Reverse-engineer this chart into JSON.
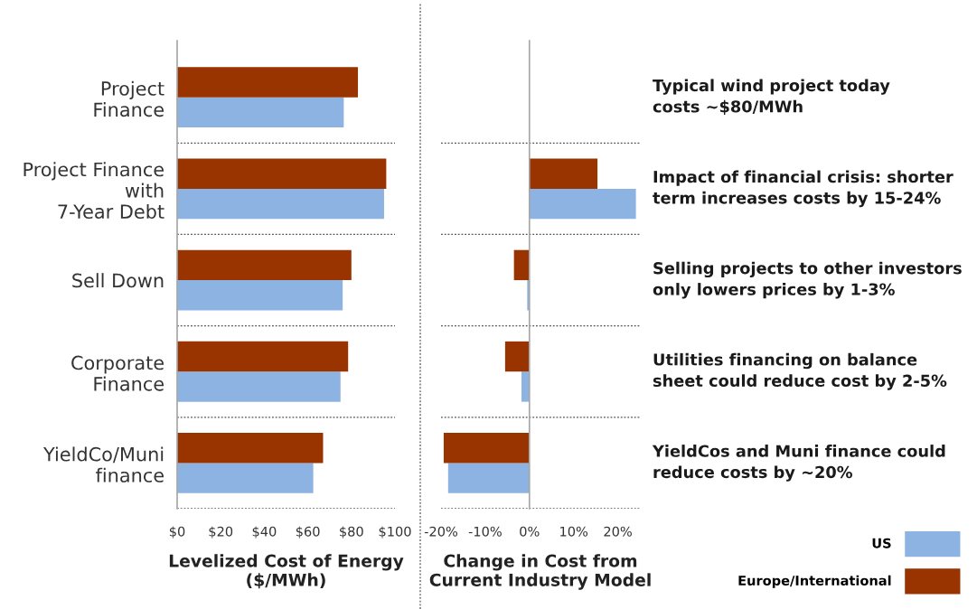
{
  "chart_data": [
    {
      "type": "bar",
      "orientation": "horizontal",
      "categories": [
        "Project\nFinance",
        "Project Finance\nwith\n7-Year Debt",
        "Sell Down",
        "Corporate\nFinance",
        "YieldCo/Muni\nfinance"
      ],
      "series": [
        {
          "name": "US",
          "color": "#8db3e2",
          "values": [
            76.5,
            95,
            76,
            75,
            62.5
          ]
        },
        {
          "name": "Europe/International",
          "color": "#993300",
          "values": [
            83,
            96,
            80,
            78.5,
            67
          ]
        }
      ],
      "xlim": [
        0,
        100
      ],
      "xticks": [
        {
          "value": 0,
          "label": "$0"
        },
        {
          "value": 20,
          "label": "$20"
        },
        {
          "value": 40,
          "label": "$40"
        },
        {
          "value": 60,
          "label": "$60"
        },
        {
          "value": 80,
          "label": "$80"
        },
        {
          "value": 100,
          "label": "$100"
        }
      ],
      "xlabel": "Levelized Cost of Energy\n($/MWh)",
      "grid": "y",
      "legend": "bottom right"
    },
    {
      "type": "bar",
      "orientation": "horizontal",
      "categories": [
        null,
        null,
        null,
        null,
        null
      ],
      "tick_labels": "x",
      "series": [
        {
          "color": "#8db3e2",
          "values": [
            0,
            24.1,
            -0.5,
            -1.8,
            -18.4
          ]
        },
        {
          "color": "#993300",
          "values": [
            0,
            15.4,
            -3.5,
            -5.5,
            -19.4
          ]
        }
      ],
      "xlim": [
        -20,
        25
      ],
      "xticks": [
        {
          "value": -20,
          "label": "-20%"
        },
        {
          "value": -10,
          "label": "-10%"
        },
        {
          "value": 0,
          "label": "0%"
        },
        {
          "value": 10,
          "label": "10%"
        },
        {
          "value": 20,
          "label": "20%"
        }
      ],
      "xlabel": "Change in Cost from\nCurrent Industry Model",
      "grid": "y",
      "annotations": [
        "Typical wind project today\ncosts ~$80/MWh",
        "Impact of financial crisis: shorter\nterm increases costs by 15-24%",
        "Selling projects to other investors\nonly lowers prices by 1-3%",
        "Utilities financing on balance\nsheet could reduce cost by 2-5%",
        "YieldCos and Muni finance could\nreduce costs by ~20%"
      ]
    }
  ]
}
